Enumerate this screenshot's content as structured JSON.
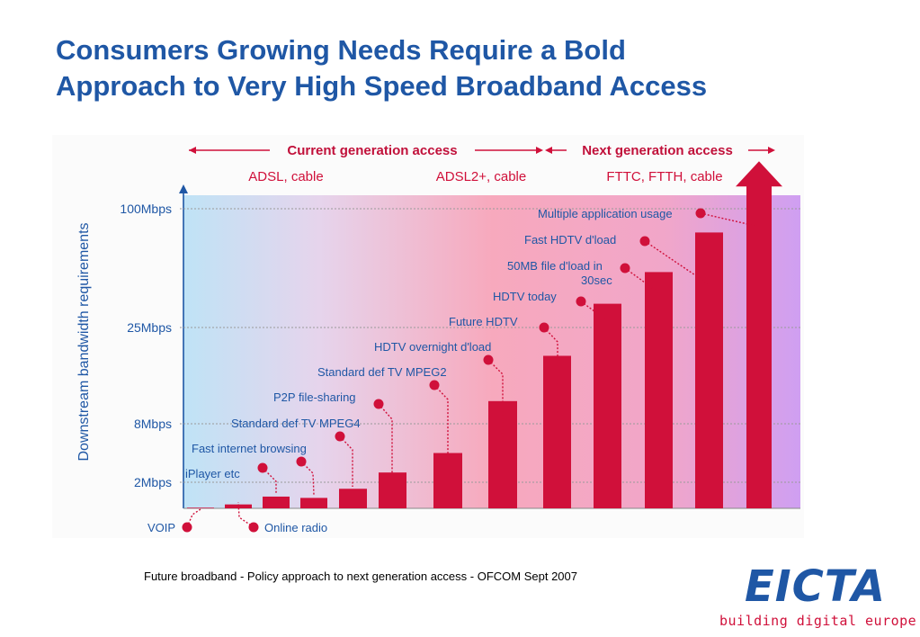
{
  "title": {
    "line1": "Consumers Growing Needs Require a Bold",
    "line2": "Approach to Very High Speed Broadband Access"
  },
  "caption": "Future broadband - Policy approach to next generation access - OFCOM Sept 2007",
  "logo": {
    "wordmark": "EICTA",
    "tagline": "building digital europe"
  },
  "colors": {
    "title": "#1f57a5",
    "bar": "#d0103a",
    "axis": "#1f57a5",
    "tagline": "#d0103a"
  },
  "chart_data": {
    "type": "bar",
    "ylabel": "Downstream bandwidth requirements",
    "yscale": "nonlinear",
    "yticks": [
      "2Mbps",
      "8Mbps",
      "25Mbps",
      "100Mbps"
    ],
    "periods": [
      {
        "label": "Current generation access",
        "tech": [
          "ADSL, cable",
          "ADSL2+, cable"
        ]
      },
      {
        "label": "Next generation access",
        "tech": [
          "FTTC, FTTH, cable"
        ]
      }
    ],
    "categories": [
      "VOIP",
      "Online radio",
      "iPlayer etc",
      "Fast internet browsing",
      "Standard def TV MPEG4",
      "P2P file-sharing",
      "Standard def TV MPEG2",
      "HDTV overnight d'load",
      "Future HDTV",
      "HDTV today",
      "50MB file d'load in 30sec",
      "Fast HDTV d'load",
      "Multiple application usage"
    ],
    "annotations": [
      "Multiple application usage"
    ],
    "values": [
      0.05,
      0.3,
      0.9,
      0.8,
      1.5,
      3,
      5,
      12,
      20,
      40,
      60,
      85,
      130
    ],
    "trend_arrow": true
  }
}
